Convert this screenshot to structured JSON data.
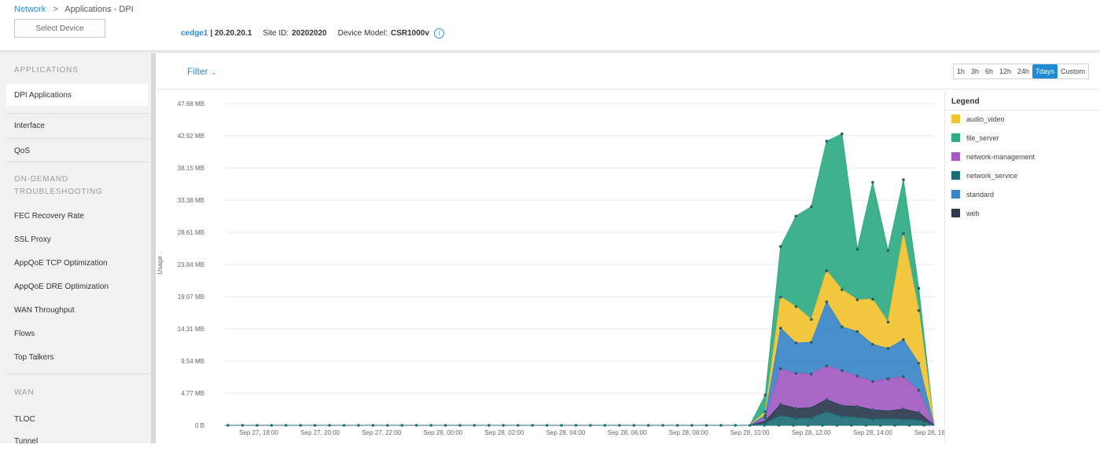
{
  "breadcrumb": {
    "parent": "Network",
    "separator": ">",
    "current": "Applications - DPI"
  },
  "device_select": {
    "placeholder": "Select Device"
  },
  "device_info": {
    "name": "cedge1",
    "ip": "| 20.20.20.1",
    "site_label": "Site ID:",
    "site_id": "20202020",
    "model_label": "Device Model:",
    "model": "CSR1000v"
  },
  "sidebar": {
    "applications_header": "APPLICATIONS",
    "dpi_item": "DPI Applications",
    "interface_item": "Interface",
    "qos_item": "QoS",
    "ondemand_header_1": "ON-DEMAND",
    "ondemand_header_2": "TROUBLESHOOTING",
    "items": [
      "FEC Recovery Rate",
      "SSL Proxy",
      "AppQoE TCP Optimization",
      "AppQoE DRE Optimization",
      "WAN Throughput",
      "Flows",
      "Top Talkers"
    ],
    "wan_header": "WAN",
    "tloc_item": "TLOC",
    "tunnel_item": "Tunnel"
  },
  "filter": {
    "label": "Filter"
  },
  "time_ranges": [
    "1h",
    "3h",
    "6h",
    "12h",
    "24h",
    "7days",
    "Custom"
  ],
  "time_selected": "7days",
  "legend": {
    "title": "Legend",
    "items": [
      {
        "name": "audio_video",
        "color": "#f2c230"
      },
      {
        "name": "file_server",
        "color": "#2faa82"
      },
      {
        "name": "network-management",
        "color": "#a25bc0"
      },
      {
        "name": "network_service",
        "color": "#1f6f7a"
      },
      {
        "name": "standard",
        "color": "#3a86c8"
      },
      {
        "name": "web",
        "color": "#2b3a4e"
      }
    ]
  },
  "chart_data": {
    "type": "area",
    "stacked": true,
    "ylabel": "Usage",
    "xlabel": "",
    "yticks": [
      "0 B",
      "4.77 MB",
      "9.54 MB",
      "14.31 MB",
      "19.07 MB",
      "23.84 MB",
      "28.61 MB",
      "33.38 MB",
      "38.15 MB",
      "42.92 MB",
      "47.68 MB"
    ],
    "ylim_mb": [
      0,
      47.68
    ],
    "xticks": [
      "Sep 27, 18:00",
      "Sep 27, 20:00",
      "Sep 27, 22:00",
      "Sep 28, 00:00",
      "Sep 28, 02:00",
      "Sep 28, 04:00",
      "Sep 28, 06:00",
      "Sep 28, 08:00",
      "Sep 28, 10:00",
      "Sep 28, 12:00",
      "Sep 28, 14:00",
      "Sep 28, 16:00"
    ],
    "x": [
      "Sep 27, 17:00",
      "Sep 28, 10:00",
      "Sep 28, 10:30",
      "Sep 28, 11:00",
      "Sep 28, 11:30",
      "Sep 28, 12:00",
      "Sep 28, 12:30",
      "Sep 28, 13:00",
      "Sep 28, 13:30",
      "Sep 28, 14:00",
      "Sep 28, 14:30",
      "Sep 28, 15:00",
      "Sep 28, 15:30",
      "Sep 28, 16:00"
    ],
    "series_order": [
      "network_service",
      "web",
      "network-management",
      "standard",
      "audio_video",
      "file_server"
    ],
    "series": [
      {
        "name": "network_service",
        "values": [
          0,
          0,
          0.3,
          1.5,
          1.0,
          1.1,
          2.0,
          1.3,
          1.2,
          0.9,
          1.0,
          0.9,
          0.8,
          0
        ]
      },
      {
        "name": "web",
        "values": [
          0,
          0,
          0.3,
          1.6,
          1.5,
          1.5,
          1.8,
          1.6,
          1.6,
          1.4,
          1.1,
          1.5,
          1.1,
          0
        ]
      },
      {
        "name": "network-management",
        "values": [
          0,
          0,
          0.5,
          5.3,
          5.2,
          5.0,
          5.0,
          5.2,
          4.5,
          4.2,
          4.8,
          4.8,
          3.3,
          0
        ]
      },
      {
        "name": "standard",
        "values": [
          0,
          0,
          0.4,
          6.0,
          4.5,
          4.7,
          9.5,
          6.5,
          6.6,
          5.5,
          4.5,
          5.5,
          4.0,
          0
        ]
      },
      {
        "name": "audio_video",
        "values": [
          0,
          0,
          0.5,
          4.6,
          5.4,
          3.4,
          4.6,
          5.5,
          4.7,
          6.7,
          3.9,
          15.7,
          7.8,
          0
        ]
      },
      {
        "name": "file_server",
        "values": [
          0,
          0,
          2.5,
          7.5,
          13.4,
          16.7,
          19.2,
          23.1,
          7.5,
          17.3,
          10.6,
          8.0,
          3.3,
          0
        ]
      }
    ]
  }
}
